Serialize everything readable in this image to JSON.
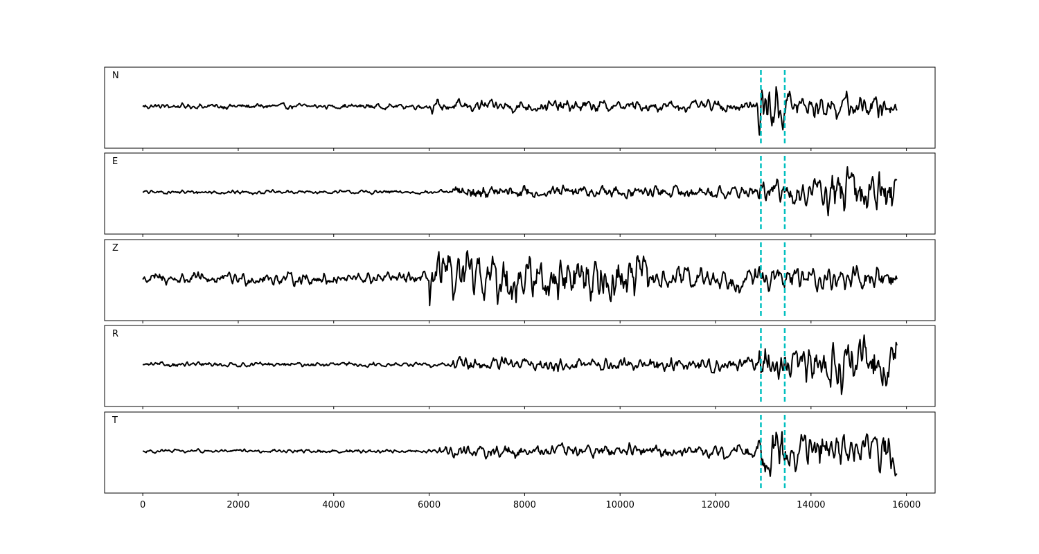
{
  "chart_data": {
    "type": "line",
    "panels": [
      {
        "label": "N"
      },
      {
        "label": "E"
      },
      {
        "label": "Z"
      },
      {
        "label": "R"
      },
      {
        "label": "T"
      }
    ],
    "x_range": [
      0,
      15800
    ],
    "xlim": [
      -800,
      16600
    ],
    "x_ticks": [
      0,
      2000,
      4000,
      6000,
      8000,
      10000,
      12000,
      14000,
      16000
    ],
    "x_tick_labels": [
      "0",
      "2000",
      "4000",
      "6000",
      "8000",
      "10000",
      "12000",
      "14000",
      "16000"
    ],
    "markers": [
      12950,
      13450
    ],
    "marker_color": "#00bfbf",
    "trace_color": "#000000",
    "grid": false,
    "y_ticks_shown": false
  }
}
